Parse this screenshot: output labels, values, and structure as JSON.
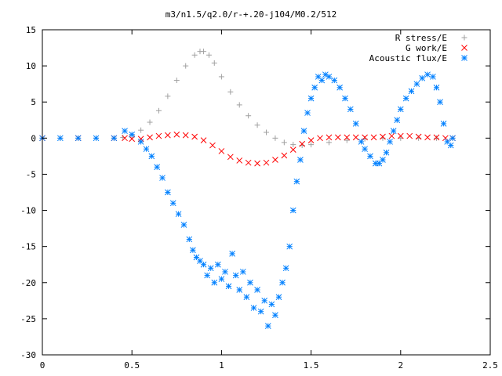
{
  "chart_data": {
    "type": "scatter",
    "title": "m3/n1.5/q2.0/r-+.20-j104/M0.2/512",
    "xlabel": "",
    "ylabel": "",
    "xlim": [
      0,
      2.5
    ],
    "ylim": [
      -30,
      15
    ],
    "xticks": [
      "0",
      "0.5",
      "1",
      "1.5",
      "2",
      "2.5"
    ],
    "yticks": [
      "15",
      "10",
      "5",
      "0",
      "-5",
      "-10",
      "-15",
      "-20",
      "-25",
      "-30"
    ],
    "grid": false,
    "legend_position": "top-right",
    "series": [
      {
        "name": "R stress/E",
        "marker": "+",
        "color": "#a0a0a0",
        "x": [
          0.0,
          0.1,
          0.2,
          0.3,
          0.4,
          0.45,
          0.5,
          0.55,
          0.6,
          0.65,
          0.7,
          0.75,
          0.8,
          0.85,
          0.88,
          0.9,
          0.93,
          0.96,
          1.0,
          1.05,
          1.1,
          1.15,
          1.2,
          1.25,
          1.3,
          1.35,
          1.4,
          1.45,
          1.5,
          1.6,
          1.7,
          1.8,
          1.9,
          2.0,
          2.1,
          2.2,
          2.29
        ],
        "y": [
          0,
          0,
          0,
          0,
          0,
          0.1,
          0.4,
          1.1,
          2.2,
          3.8,
          5.8,
          8.0,
          10.0,
          11.5,
          12.0,
          12.0,
          11.5,
          10.4,
          8.5,
          6.4,
          4.6,
          3.1,
          1.8,
          0.8,
          0.0,
          -0.6,
          -0.9,
          -1.0,
          -0.9,
          -0.6,
          -0.3,
          -0.1,
          0,
          0,
          0,
          0,
          0
        ]
      },
      {
        "name": "G work/E",
        "marker": "x",
        "color": "#ff0000",
        "x": [
          0.0,
          0.2,
          0.4,
          0.46,
          0.5,
          0.55,
          0.6,
          0.65,
          0.7,
          0.75,
          0.8,
          0.85,
          0.9,
          0.95,
          1.0,
          1.05,
          1.1,
          1.15,
          1.2,
          1.25,
          1.3,
          1.35,
          1.4,
          1.45,
          1.5,
          1.55,
          1.6,
          1.65,
          1.7,
          1.75,
          1.8,
          1.85,
          1.9,
          1.95,
          2.0,
          2.05,
          2.1,
          2.15,
          2.2,
          2.25,
          2.29
        ],
        "y": [
          0,
          0,
          0,
          0,
          -0.1,
          -0.1,
          0.1,
          0.3,
          0.4,
          0.5,
          0.4,
          0.2,
          -0.3,
          -1.0,
          -1.8,
          -2.6,
          -3.1,
          -3.4,
          -3.5,
          -3.4,
          -3.0,
          -2.4,
          -1.6,
          -0.8,
          -0.3,
          0,
          0.1,
          0.1,
          0.1,
          0.1,
          0.1,
          0.1,
          0.2,
          0.3,
          0.3,
          0.3,
          0.2,
          0.1,
          0.1,
          0,
          0
        ]
      },
      {
        "name": "Acoustic flux/E",
        "marker": "*",
        "color": "#0080ff",
        "x": [
          0.0,
          0.1,
          0.2,
          0.3,
          0.4,
          0.46,
          0.5,
          0.55,
          0.58,
          0.61,
          0.64,
          0.67,
          0.7,
          0.73,
          0.76,
          0.79,
          0.82,
          0.84,
          0.86,
          0.88,
          0.9,
          0.92,
          0.94,
          0.96,
          0.98,
          1.0,
          1.02,
          1.04,
          1.06,
          1.08,
          1.1,
          1.12,
          1.14,
          1.16,
          1.18,
          1.2,
          1.22,
          1.24,
          1.26,
          1.28,
          1.3,
          1.32,
          1.34,
          1.36,
          1.38,
          1.4,
          1.42,
          1.44,
          1.46,
          1.48,
          1.5,
          1.52,
          1.54,
          1.56,
          1.58,
          1.6,
          1.63,
          1.66,
          1.69,
          1.72,
          1.75,
          1.78,
          1.8,
          1.83,
          1.86,
          1.88,
          1.9,
          1.92,
          1.94,
          1.96,
          1.98,
          2.0,
          2.03,
          2.06,
          2.09,
          2.12,
          2.15,
          2.18,
          2.2,
          2.22,
          2.24,
          2.26,
          2.28,
          2.29
        ],
        "y": [
          0,
          0,
          0,
          0,
          0,
          1.0,
          0.5,
          -0.5,
          -1.5,
          -2.5,
          -4.0,
          -5.5,
          -7.5,
          -9.0,
          -10.5,
          -12.0,
          -14.0,
          -15.5,
          -16.5,
          -17.0,
          -17.5,
          -19.0,
          -18.0,
          -20.0,
          -17.5,
          -19.5,
          -18.5,
          -20.5,
          -16.0,
          -19.0,
          -21.0,
          -18.5,
          -22.0,
          -20.0,
          -23.5,
          -21.0,
          -24.0,
          -22.5,
          -26.0,
          -23.0,
          -24.5,
          -22.0,
          -20.0,
          -18.0,
          -15.0,
          -10.0,
          -6.0,
          -3.0,
          1.0,
          3.5,
          5.5,
          7.0,
          8.5,
          8.0,
          8.8,
          8.5,
          8.0,
          7.0,
          5.5,
          4.0,
          2.0,
          -0.5,
          -1.5,
          -2.5,
          -3.5,
          -3.5,
          -3.0,
          -2.0,
          -0.5,
          1.0,
          2.5,
          4.0,
          5.5,
          6.5,
          7.5,
          8.3,
          8.8,
          8.5,
          7.0,
          5.0,
          2.0,
          -0.5,
          -1.0,
          0
        ]
      }
    ]
  }
}
